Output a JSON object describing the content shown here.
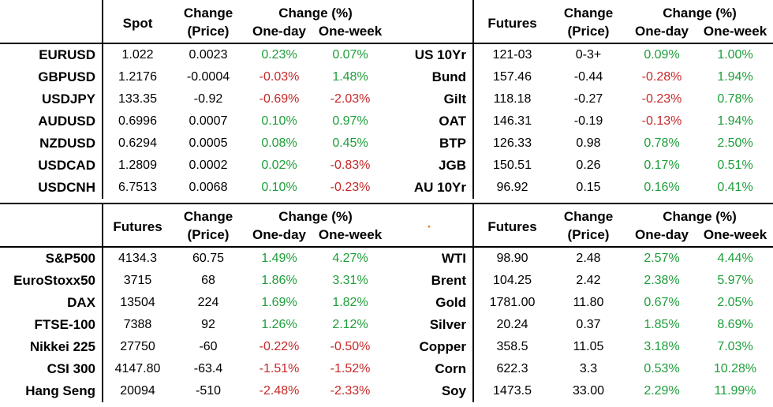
{
  "colors": {
    "positive": "#1e9e3a",
    "negative": "#c62828",
    "text": "#000000"
  },
  "headers": {
    "change_price_1": "Change",
    "change_price_2": "(Price)",
    "change_pct": "Change (%)",
    "one_day": "One-day",
    "one_week": "One-week"
  },
  "panels": {
    "fx": {
      "label_header": "",
      "col_header": "Spot",
      "rows": [
        {
          "label": "EURUSD",
          "value": "1.022",
          "change": "0.0023",
          "one_day": "0.23%",
          "one_week": "0.07%"
        },
        {
          "label": "GBPUSD",
          "value": "1.2176",
          "change": "-0.0004",
          "one_day": "-0.03%",
          "one_week": "1.48%"
        },
        {
          "label": "USDJPY",
          "value": "133.35",
          "change": "-0.92",
          "one_day": "-0.69%",
          "one_week": "-2.03%"
        },
        {
          "label": "AUDUSD",
          "value": "0.6996",
          "change": "0.0007",
          "one_day": "0.10%",
          "one_week": "0.97%"
        },
        {
          "label": "NZDUSD",
          "value": "0.6294",
          "change": "0.0005",
          "one_day": "0.08%",
          "one_week": "0.45%"
        },
        {
          "label": "USDCAD",
          "value": "1.2809",
          "change": "0.0002",
          "one_day": "0.02%",
          "one_week": "-0.83%"
        },
        {
          "label": "USDCNH",
          "value": "6.7513",
          "change": "0.0068",
          "one_day": "0.10%",
          "one_week": "-0.23%"
        }
      ]
    },
    "bonds": {
      "label_header": "",
      "col_header": "Futures",
      "rows": [
        {
          "label": "US 10Yr",
          "value": "121-03",
          "change": "0-3+",
          "one_day": "0.09%",
          "one_week": "1.00%"
        },
        {
          "label": "Bund",
          "value": "157.46",
          "change": "-0.44",
          "one_day": "-0.28%",
          "one_week": "1.94%"
        },
        {
          "label": "Gilt",
          "value": "118.18",
          "change": "-0.27",
          "one_day": "-0.23%",
          "one_week": "0.78%"
        },
        {
          "label": "OAT",
          "value": "146.31",
          "change": "-0.19",
          "one_day": "-0.13%",
          "one_week": "1.94%"
        },
        {
          "label": "BTP",
          "value": "126.33",
          "change": "0.98",
          "one_day": "0.78%",
          "one_week": "2.50%"
        },
        {
          "label": "JGB",
          "value": "150.51",
          "change": "0.26",
          "one_day": "0.17%",
          "one_week": "0.51%"
        },
        {
          "label": "AU 10Yr",
          "value": "96.92",
          "change": "0.15",
          "one_day": "0.16%",
          "one_week": "0.41%"
        }
      ]
    },
    "equities": {
      "label_header": "",
      "col_header": "Futures",
      "rows": [
        {
          "label": "S&P500",
          "value": "4134.3",
          "change": "60.75",
          "one_day": "1.49%",
          "one_week": "4.27%"
        },
        {
          "label": "EuroStoxx50",
          "value": "3715",
          "change": "68",
          "one_day": "1.86%",
          "one_week": "3.31%"
        },
        {
          "label": "DAX",
          "value": "13504",
          "change": "224",
          "one_day": "1.69%",
          "one_week": "1.82%"
        },
        {
          "label": "FTSE-100",
          "value": "7388",
          "change": "92",
          "one_day": "1.26%",
          "one_week": "2.12%"
        },
        {
          "label": "Nikkei 225",
          "value": "27750",
          "change": "-60",
          "one_day": "-0.22%",
          "one_week": "-0.50%"
        },
        {
          "label": "CSI 300",
          "value": "4147.80",
          "change": "-63.4",
          "one_day": "-1.51%",
          "one_week": "-1.52%"
        },
        {
          "label": "Hang Seng",
          "value": "20094",
          "change": "-510",
          "one_day": "-2.48%",
          "one_week": "-2.33%"
        }
      ]
    },
    "commodities": {
      "label_header": "·",
      "col_header": "Futures",
      "rows": [
        {
          "label": "WTI",
          "value": "98.90",
          "change": "2.48",
          "one_day": "2.57%",
          "one_week": "4.44%"
        },
        {
          "label": "Brent",
          "value": "104.25",
          "change": "2.42",
          "one_day": "2.38%",
          "one_week": "5.97%"
        },
        {
          "label": "Gold",
          "value": "1781.00",
          "change": "11.80",
          "one_day": "0.67%",
          "one_week": "2.05%"
        },
        {
          "label": "Silver",
          "value": "20.24",
          "change": "0.37",
          "one_day": "1.85%",
          "one_week": "8.69%"
        },
        {
          "label": "Copper",
          "value": "358.5",
          "change": "11.05",
          "one_day": "3.18%",
          "one_week": "7.03%"
        },
        {
          "label": "Corn",
          "value": "622.3",
          "change": "3.3",
          "one_day": "0.53%",
          "one_week": "10.28%"
        },
        {
          "label": "Soy",
          "value": "1473.5",
          "change": "33.00",
          "one_day": "2.29%",
          "one_week": "11.99%"
        }
      ]
    }
  }
}
